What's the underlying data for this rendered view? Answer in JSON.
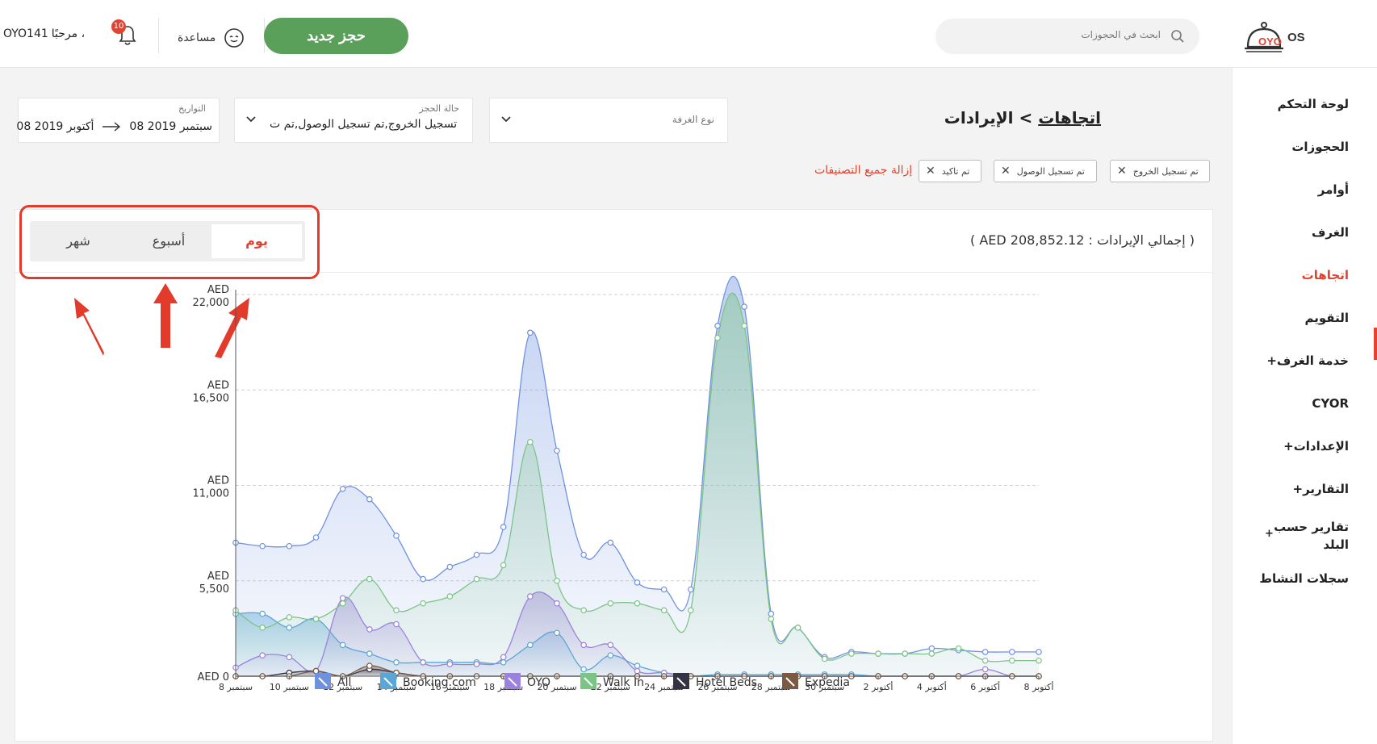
{
  "header": {
    "greeting": "مرحبًا ،",
    "user": "OYO141",
    "notification_count": "10",
    "help_label": "مساعدة",
    "new_booking_label": "حجز جديد",
    "search_placeholder": "ابحث في الحجوزات",
    "logo_text": "OYO",
    "logo_suffix": "OS"
  },
  "sidebar": {
    "items": [
      {
        "label": "لوحة التحكم"
      },
      {
        "label": "الحجوزات"
      },
      {
        "label": "أوامر"
      },
      {
        "label": "الغرف"
      },
      {
        "label": "اتجاهات"
      },
      {
        "label": "التقويم"
      },
      {
        "label": "خدمة الغرف+"
      },
      {
        "label": "CYOR"
      },
      {
        "label": "الإعدادات+"
      },
      {
        "label": "التقارير+"
      },
      {
        "label": "تقارير حسب"
      },
      {
        "label": "البلد"
      },
      {
        "label": "سجلات النشاط"
      }
    ],
    "plus": "+"
  },
  "filters": {
    "room_type": {
      "label": "نوع الغرفة"
    },
    "booking_status": {
      "label": "حالة الحجز",
      "value": "تم تسجيل الخروج,تم تسجيل الوصول,تم ت"
    },
    "dates": {
      "label": "التواريخ",
      "from": "08 سبتمبر 2019",
      "to": "08 أكتوبر 2019"
    }
  },
  "page": {
    "title_link": "اتجاهات",
    "title_sep": ">",
    "title": "الإيرادات"
  },
  "chips": [
    {
      "label": "تم تسجيل الخروج"
    },
    {
      "label": "تم تسجيل الوصول"
    },
    {
      "label": "تم تاكيد"
    }
  ],
  "clear_all": "إزالة جميع التصنيفات",
  "card": {
    "total": "( إجمالي الإيرادات : AED 208,852.12 )",
    "toggle": {
      "day": "يوم",
      "week": "أسبوع",
      "month": "شهر"
    }
  },
  "colors": {
    "accent": "#e2422f",
    "green_button": "#5aa05a",
    "all": "#6f92e0",
    "booking": "#5ba6d6",
    "oyo": "#9b82dc",
    "walkin": "#7cc486",
    "hotelbeds": "#333344",
    "expedia": "#7a5a44"
  },
  "chart_data": {
    "type": "area",
    "y_ticks": [
      {
        "value": 0,
        "currency": "AED",
        "num": "0"
      },
      {
        "value": 5500,
        "currency": "AED",
        "num": "5,500"
      },
      {
        "value": 11000,
        "currency": "AED",
        "num": "11,000"
      },
      {
        "value": 16500,
        "currency": "AED",
        "num": "16,500"
      },
      {
        "value": 22000,
        "currency": "AED",
        "num": "22,000"
      }
    ],
    "ylim": [
      0,
      22000
    ],
    "x_labels": [
      {
        "day": "8",
        "month": "سبتمبر",
        "index": 0
      },
      {
        "day": "10",
        "month": "سبتمبر",
        "index": 2
      },
      {
        "day": "12",
        "month": "سبتمبر",
        "index": 4
      },
      {
        "day": "14",
        "month": "سبتمبر",
        "index": 6
      },
      {
        "day": "16",
        "month": "سبتمبر",
        "index": 8
      },
      {
        "day": "18",
        "month": "سبتمبر",
        "index": 10
      },
      {
        "day": "20",
        "month": "سبتمبر",
        "index": 12
      },
      {
        "day": "22",
        "month": "سبتمبر",
        "index": 14
      },
      {
        "day": "24",
        "month": "سبتمبر",
        "index": 16
      },
      {
        "day": "26",
        "month": "سبتمبر",
        "index": 18
      },
      {
        "day": "28",
        "month": "سبتمبر",
        "index": 20
      },
      {
        "day": "30",
        "month": "سبتمبر",
        "index": 22
      },
      {
        "day": "2",
        "month": "أكتوبر",
        "index": 24
      },
      {
        "day": "4",
        "month": "أكتوبر",
        "index": 26
      },
      {
        "day": "6",
        "month": "أكتوبر",
        "index": 28
      },
      {
        "day": "8",
        "month": "أكتوبر",
        "index": 30
      }
    ],
    "series": [
      {
        "name": "All",
        "color": "#6f92e0",
        "values": [
          7700,
          7500,
          7500,
          8000,
          10800,
          10200,
          8100,
          5600,
          6300,
          7000,
          8600,
          19800,
          13000,
          7000,
          7700,
          5400,
          5000,
          5000,
          20200,
          21300,
          3600,
          2800,
          1100,
          1400,
          1300,
          1300,
          1600,
          1500,
          1400,
          1400,
          1400
        ]
      },
      {
        "name": "Booking.com",
        "color": "#5ba6d6",
        "values": [
          3600,
          3600,
          2800,
          3300,
          1800,
          1300,
          800,
          800,
          800,
          800,
          800,
          1800,
          2500,
          400,
          1200,
          600,
          200,
          0,
          100,
          100,
          100,
          100,
          100,
          100,
          0,
          0,
          0,
          0,
          0,
          0,
          0
        ]
      },
      {
        "name": "OYO",
        "color": "#9b82dc",
        "values": [
          500,
          1200,
          1100,
          300,
          4500,
          2700,
          3000,
          800,
          700,
          700,
          1100,
          4600,
          4200,
          1800,
          1800,
          300,
          200,
          0,
          0,
          0,
          0,
          0,
          0,
          0,
          0,
          0,
          0,
          0,
          400,
          0,
          0
        ]
      },
      {
        "name": "Walk In",
        "color": "#7cc486",
        "values": [
          3800,
          2800,
          3400,
          3300,
          4200,
          5600,
          3800,
          4200,
          4600,
          5600,
          6400,
          13500,
          5500,
          3800,
          4200,
          4200,
          3800,
          3800,
          19500,
          20200,
          3300,
          2800,
          1000,
          1300,
          1300,
          1300,
          1300,
          1600,
          900,
          900,
          900
        ]
      },
      {
        "name": "Hotel Beds",
        "color": "#333344",
        "values": [
          0,
          0,
          200,
          300,
          0,
          400,
          200,
          0,
          0,
          0,
          0,
          0,
          0,
          0,
          0,
          0,
          0,
          0,
          0,
          0,
          0,
          0,
          0,
          0,
          0,
          0,
          0,
          0,
          0,
          0,
          0
        ]
      },
      {
        "name": "Expedia",
        "color": "#7a5a44",
        "values": [
          0,
          0,
          0,
          300,
          0,
          600,
          200,
          0,
          0,
          0,
          0,
          0,
          0,
          0,
          0,
          0,
          0,
          0,
          0,
          0,
          0,
          0,
          0,
          0,
          0,
          0,
          0,
          0,
          0,
          0,
          0
        ]
      }
    ],
    "grid": true,
    "legend_position": "bottom"
  }
}
